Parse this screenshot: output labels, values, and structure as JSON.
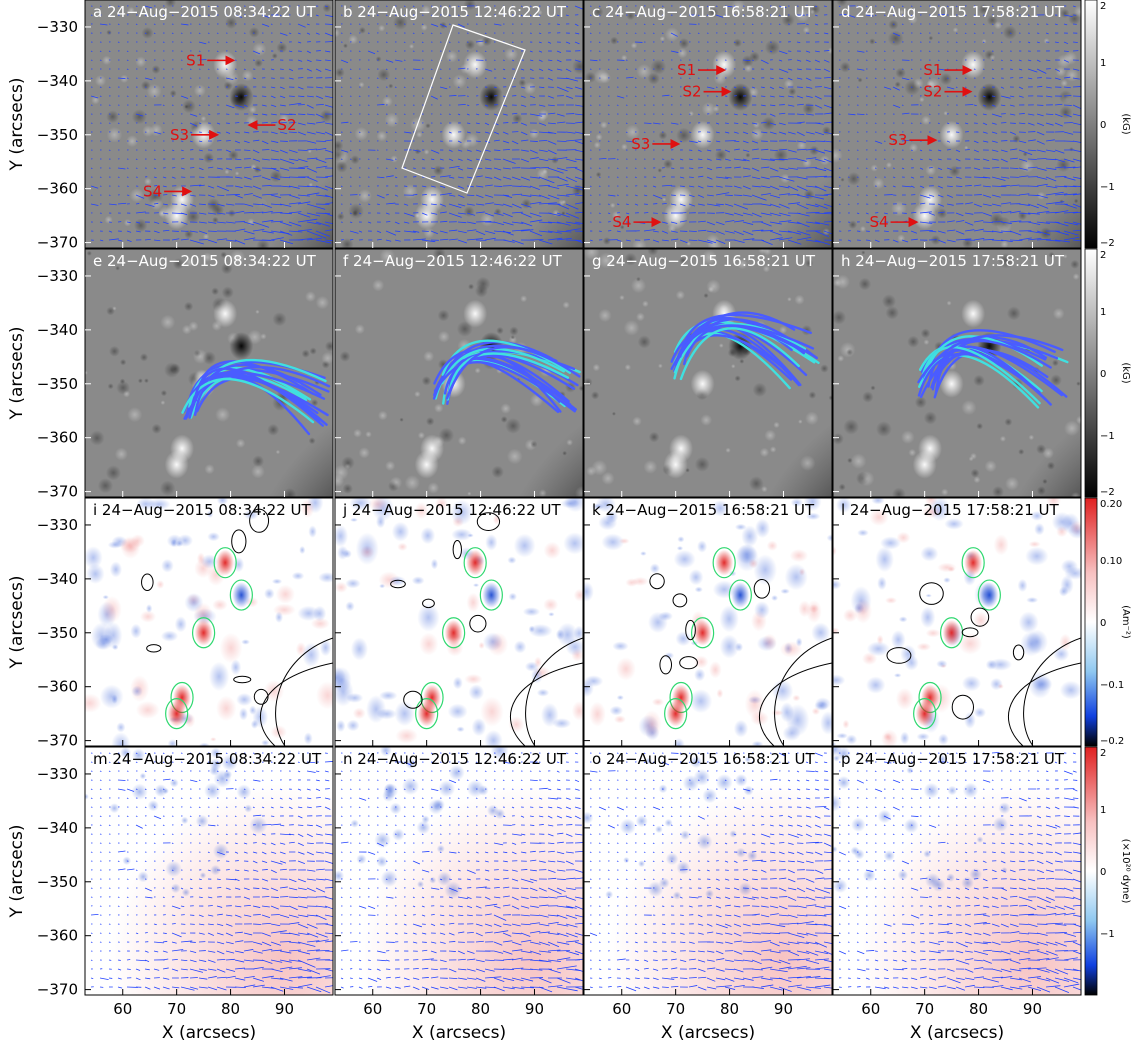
{
  "chart_data": {
    "type": "heatmap",
    "rows": [
      {
        "quantity": "Bz magnetogram with transverse field vectors",
        "colorbar": {
          "label": "(kG)",
          "ticks": [
            "2",
            "1",
            "0",
            "−1",
            "−2"
          ],
          "range": [
            -2,
            2
          ],
          "cmap": "gray"
        },
        "panels": [
          {
            "letter": "a",
            "time": "24−Aug−2015 08:34:22 UT"
          },
          {
            "letter": "b",
            "time": "24−Aug−2015 12:46:22 UT"
          },
          {
            "letter": "c",
            "time": "24−Aug−2015 16:58:21 UT"
          },
          {
            "letter": "d",
            "time": "24−Aug−2015 17:58:21 UT"
          }
        ]
      },
      {
        "quantity": "Bz with extrapolated field lines",
        "colorbar": {
          "label": "(kG)",
          "ticks": [
            "2",
            "1",
            "0",
            "−1",
            "−2"
          ],
          "range": [
            -2,
            2
          ],
          "cmap": "gray"
        },
        "panels": [
          {
            "letter": "e",
            "time": "24−Aug−2015 08:34:22 UT"
          },
          {
            "letter": "f",
            "time": "24−Aug−2015 12:46:22 UT"
          },
          {
            "letter": "g",
            "time": "24−Aug−2015 16:58:21 UT"
          },
          {
            "letter": "h",
            "time": "24−Aug−2015 17:58:21 UT"
          }
        ]
      },
      {
        "quantity": "vertical current density",
        "colorbar": {
          "label": "(Am⁻²)",
          "ticks": [
            "0.20",
            "0.10",
            "0",
            "−0.1",
            "−0.2"
          ],
          "range": [
            -0.2,
            0.2
          ],
          "cmap": "blue-white-red"
        },
        "panels": [
          {
            "letter": "i",
            "time": "24−Aug−2015 08:34:22 UT"
          },
          {
            "letter": "j",
            "time": "24−Aug−2015 12:46:22 UT"
          },
          {
            "letter": "k",
            "time": "24−Aug−2015 16:58:21 UT"
          },
          {
            "letter": "l",
            "time": "24−Aug−2015 17:58:21 UT"
          }
        ]
      },
      {
        "quantity": "Lorentz force",
        "colorbar": {
          "label": "(×10²⁰ dyne)",
          "ticks": [
            "2",
            "1",
            "0",
            "−1"
          ],
          "range": [
            -2,
            2
          ],
          "cmap": "blue-white-red"
        },
        "panels": [
          {
            "letter": "m",
            "time": "24−Aug−2015 08:34:22 UT"
          },
          {
            "letter": "n",
            "time": "24−Aug−2015 12:46:22 UT"
          },
          {
            "letter": "o",
            "time": "24−Aug−2015 16:58:21 UT"
          },
          {
            "letter": "p",
            "time": "24−Aug−2015 17:58:21 UT"
          }
        ]
      }
    ],
    "xlabel": "X (arcsecs)",
    "ylabel": "Y (arcsecs)",
    "xlim": [
      53,
      99
    ],
    "ylim": [
      -371,
      -325
    ],
    "xticks": [
      60,
      70,
      80,
      90
    ],
    "yticks": [
      -330,
      -340,
      -350,
      -360,
      -370
    ],
    "xtick_labels": [
      "60",
      "70",
      "80",
      "90"
    ],
    "ytick_labels": [
      "−330",
      "−340",
      "−350",
      "−360",
      "−370"
    ],
    "annotations": [
      {
        "panel": "a",
        "label": "S1",
        "x": 80.5,
        "y": -336.2
      },
      {
        "panel": "a",
        "label": "S2",
        "x": 83.5,
        "y": -348.2
      },
      {
        "panel": "a",
        "label": "S3",
        "x": 77.5,
        "y": -350.0
      },
      {
        "panel": "a",
        "label": "S4",
        "x": 72.5,
        "y": -360.5
      },
      {
        "panel": "c",
        "label": "S1",
        "x": 79.0,
        "y": -338.0
      },
      {
        "panel": "c",
        "label": "S2",
        "x": 80.0,
        "y": -342.0
      },
      {
        "panel": "c",
        "label": "S3",
        "x": 70.5,
        "y": -351.7
      },
      {
        "panel": "c",
        "label": "S4",
        "x": 67.0,
        "y": -366.2
      },
      {
        "panel": "d",
        "label": "S1",
        "x": 78.5,
        "y": -338.0
      },
      {
        "panel": "d",
        "label": "S2",
        "x": 78.5,
        "y": -342.0
      },
      {
        "panel": "d",
        "label": "S3",
        "x": 72.0,
        "y": -351.0
      },
      {
        "panel": "d",
        "label": "S4",
        "x": 68.5,
        "y": -366.2
      }
    ],
    "features": [
      {
        "x": 79,
        "y": -337,
        "polarity": 1
      },
      {
        "x": 82,
        "y": -343,
        "polarity": -1
      },
      {
        "x": 75,
        "y": -350,
        "polarity": 1
      },
      {
        "x": 71,
        "y": -362,
        "polarity": 1
      },
      {
        "x": 70,
        "y": -365,
        "polarity": 1
      }
    ],
    "colors": {
      "arrow_red": "#e01010",
      "vector_blue": "#2040ff",
      "fieldline_blue": "#4a5cff",
      "fieldline_cyan": "#40e0e0",
      "contour_green": "#30d870",
      "contour_black": "#000000"
    }
  }
}
